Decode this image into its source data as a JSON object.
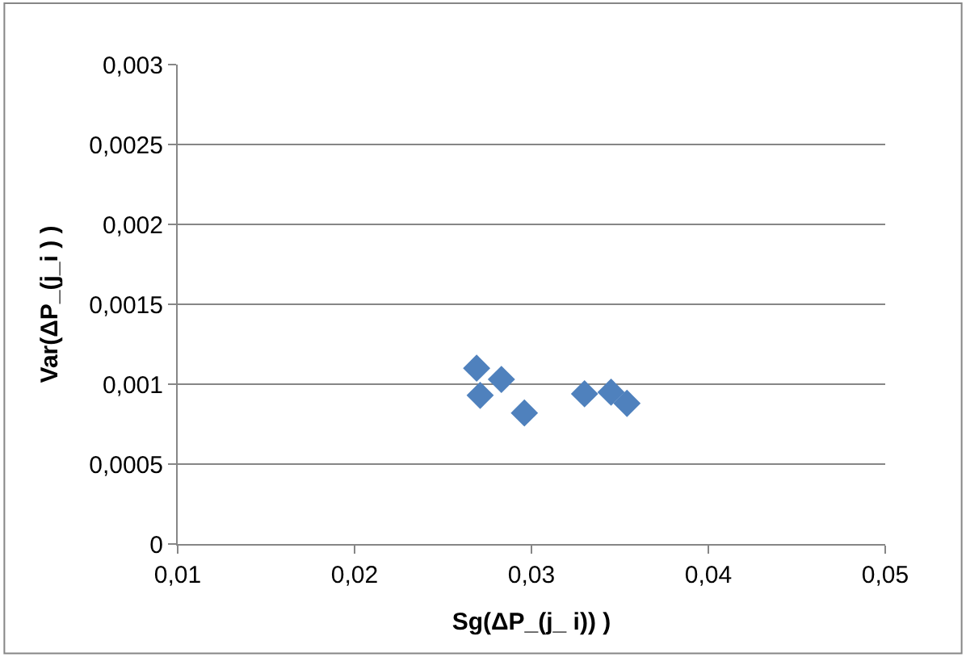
{
  "chart_data": {
    "type": "scatter",
    "xlabel": "Sg(ΔP_(j_ i)) )",
    "ylabel": "Var(ΔP_(j_i ) )",
    "marker": "diamond",
    "grid": "y",
    "x": [
      0.0269,
      0.0283,
      0.0271,
      0.0296,
      0.033,
      0.0345,
      0.0354
    ],
    "series": [
      {
        "color": "#4f81bd",
        "values": [
          0.0011,
          0.00103,
          0.00093,
          0.00082,
          0.00094,
          0.00095,
          0.00088
        ]
      }
    ],
    "xlim": [
      0.01,
      0.05
    ],
    "xticks": [
      {
        "value": 0.01,
        "label": "0,01"
      },
      {
        "value": 0.02,
        "label": "0,02"
      },
      {
        "value": 0.03,
        "label": "0,03"
      },
      {
        "value": 0.04,
        "label": "0,04"
      },
      {
        "value": 0.05,
        "label": "0,05"
      }
    ],
    "ylim": [
      0,
      0.003
    ],
    "yticks": [
      {
        "value": 0,
        "label": "0"
      },
      {
        "value": 0.0005,
        "label": "0,0005"
      },
      {
        "value": 0.001,
        "label": "0,001"
      },
      {
        "value": 0.0015,
        "label": "0,0015"
      },
      {
        "value": 0.002,
        "label": "0,002"
      },
      {
        "value": 0.0025,
        "label": "0,0025"
      },
      {
        "value": 0.003,
        "label": "0,003"
      }
    ]
  }
}
